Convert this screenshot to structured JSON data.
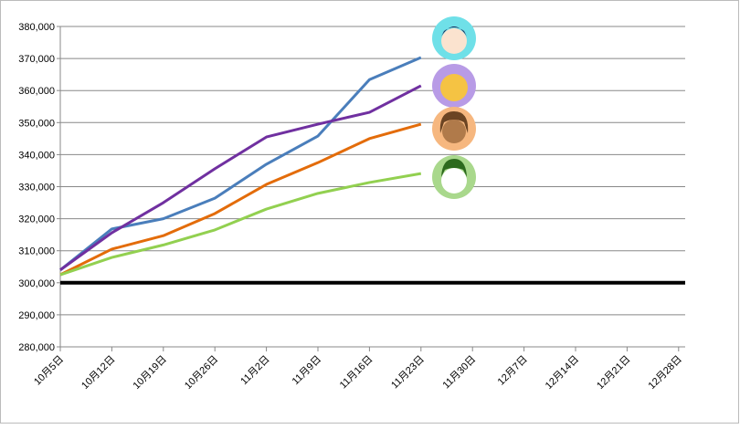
{
  "chart_data": {
    "type": "line",
    "categories": [
      "10月5日",
      "10月12日",
      "10月19日",
      "10月26日",
      "11月2日",
      "11月9日",
      "11月16日",
      "11月23日",
      "11月30日",
      "12月7日",
      "12月14日",
      "12月21日",
      "12月28日"
    ],
    "series": [
      {
        "color": "#4a7ebb",
        "values": [
          304000,
          316800,
          320000,
          326400,
          337000,
          345800,
          363400,
          370300,
          null,
          null,
          null,
          null,
          null
        ]
      },
      {
        "color": "#7030a0",
        "values": [
          304000,
          315600,
          325000,
          335600,
          345500,
          349500,
          353200,
          361500,
          null,
          null,
          null,
          null,
          null
        ]
      },
      {
        "color": "#e36c0a",
        "values": [
          302500,
          310500,
          314700,
          321600,
          330700,
          337500,
          345000,
          349500,
          null,
          null,
          null,
          null,
          null
        ]
      },
      {
        "color": "#92d050",
        "values": [
          302500,
          307900,
          311800,
          316500,
          323000,
          327900,
          331300,
          334100,
          null,
          null,
          null,
          null,
          null
        ]
      }
    ],
    "ylim": [
      280000,
      380000
    ],
    "yticks": [
      {
        "value": 280000,
        "label": "280,000"
      },
      {
        "value": 290000,
        "label": "290,000"
      },
      {
        "value": 300000,
        "label": "300,000"
      },
      {
        "value": 310000,
        "label": "310,000"
      },
      {
        "value": 320000,
        "label": "320,000"
      },
      {
        "value": 330000,
        "label": "330,000"
      },
      {
        "value": 340000,
        "label": "340,000"
      },
      {
        "value": 350000,
        "label": "350,000"
      },
      {
        "value": 360000,
        "label": "360,000"
      },
      {
        "value": 370000,
        "label": "370,000"
      },
      {
        "value": 380000,
        "label": "380,000"
      }
    ],
    "grid": true,
    "reference_line": 300000
  }
}
